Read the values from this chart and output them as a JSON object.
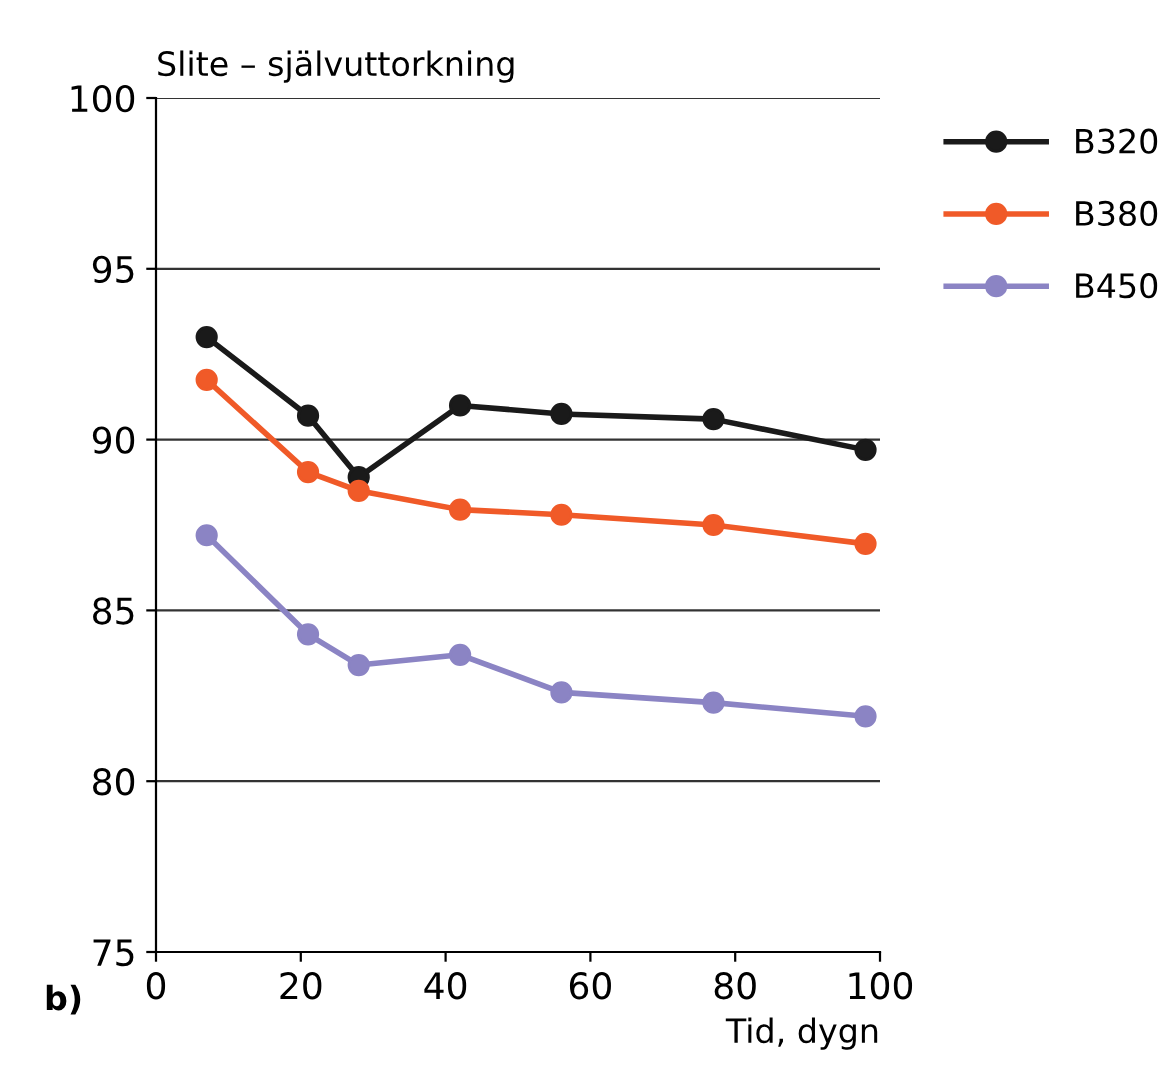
{
  "chart_data": {
    "type": "line",
    "title": "Slite – självuttorkning",
    "xlabel": "Tid, dygn",
    "annotations": [
      "b)"
    ],
    "x": [
      7,
      21,
      28,
      42,
      56,
      77,
      98
    ],
    "series": [
      {
        "name": "B320",
        "color": "#1a1a1a",
        "values": [
          93.0,
          90.7,
          88.9,
          91.0,
          90.75,
          90.6,
          89.7
        ]
      },
      {
        "name": "B380",
        "color": "#f05a28",
        "values": [
          91.75,
          89.05,
          88.5,
          87.95,
          87.8,
          87.5,
          86.95
        ]
      },
      {
        "name": "B450",
        "color": "#8b84c4",
        "values": [
          87.2,
          84.3,
          83.4,
          83.7,
          82.6,
          82.3,
          81.9
        ]
      }
    ],
    "xlim": [
      0,
      100
    ],
    "xticks": [
      0,
      20,
      40,
      60,
      80,
      100
    ],
    "ylim": [
      75,
      100
    ],
    "yticks": [
      75,
      80,
      85,
      90,
      95,
      100
    ],
    "grid": "y",
    "legend": "right",
    "marker": "circle",
    "line_style": "solid"
  }
}
